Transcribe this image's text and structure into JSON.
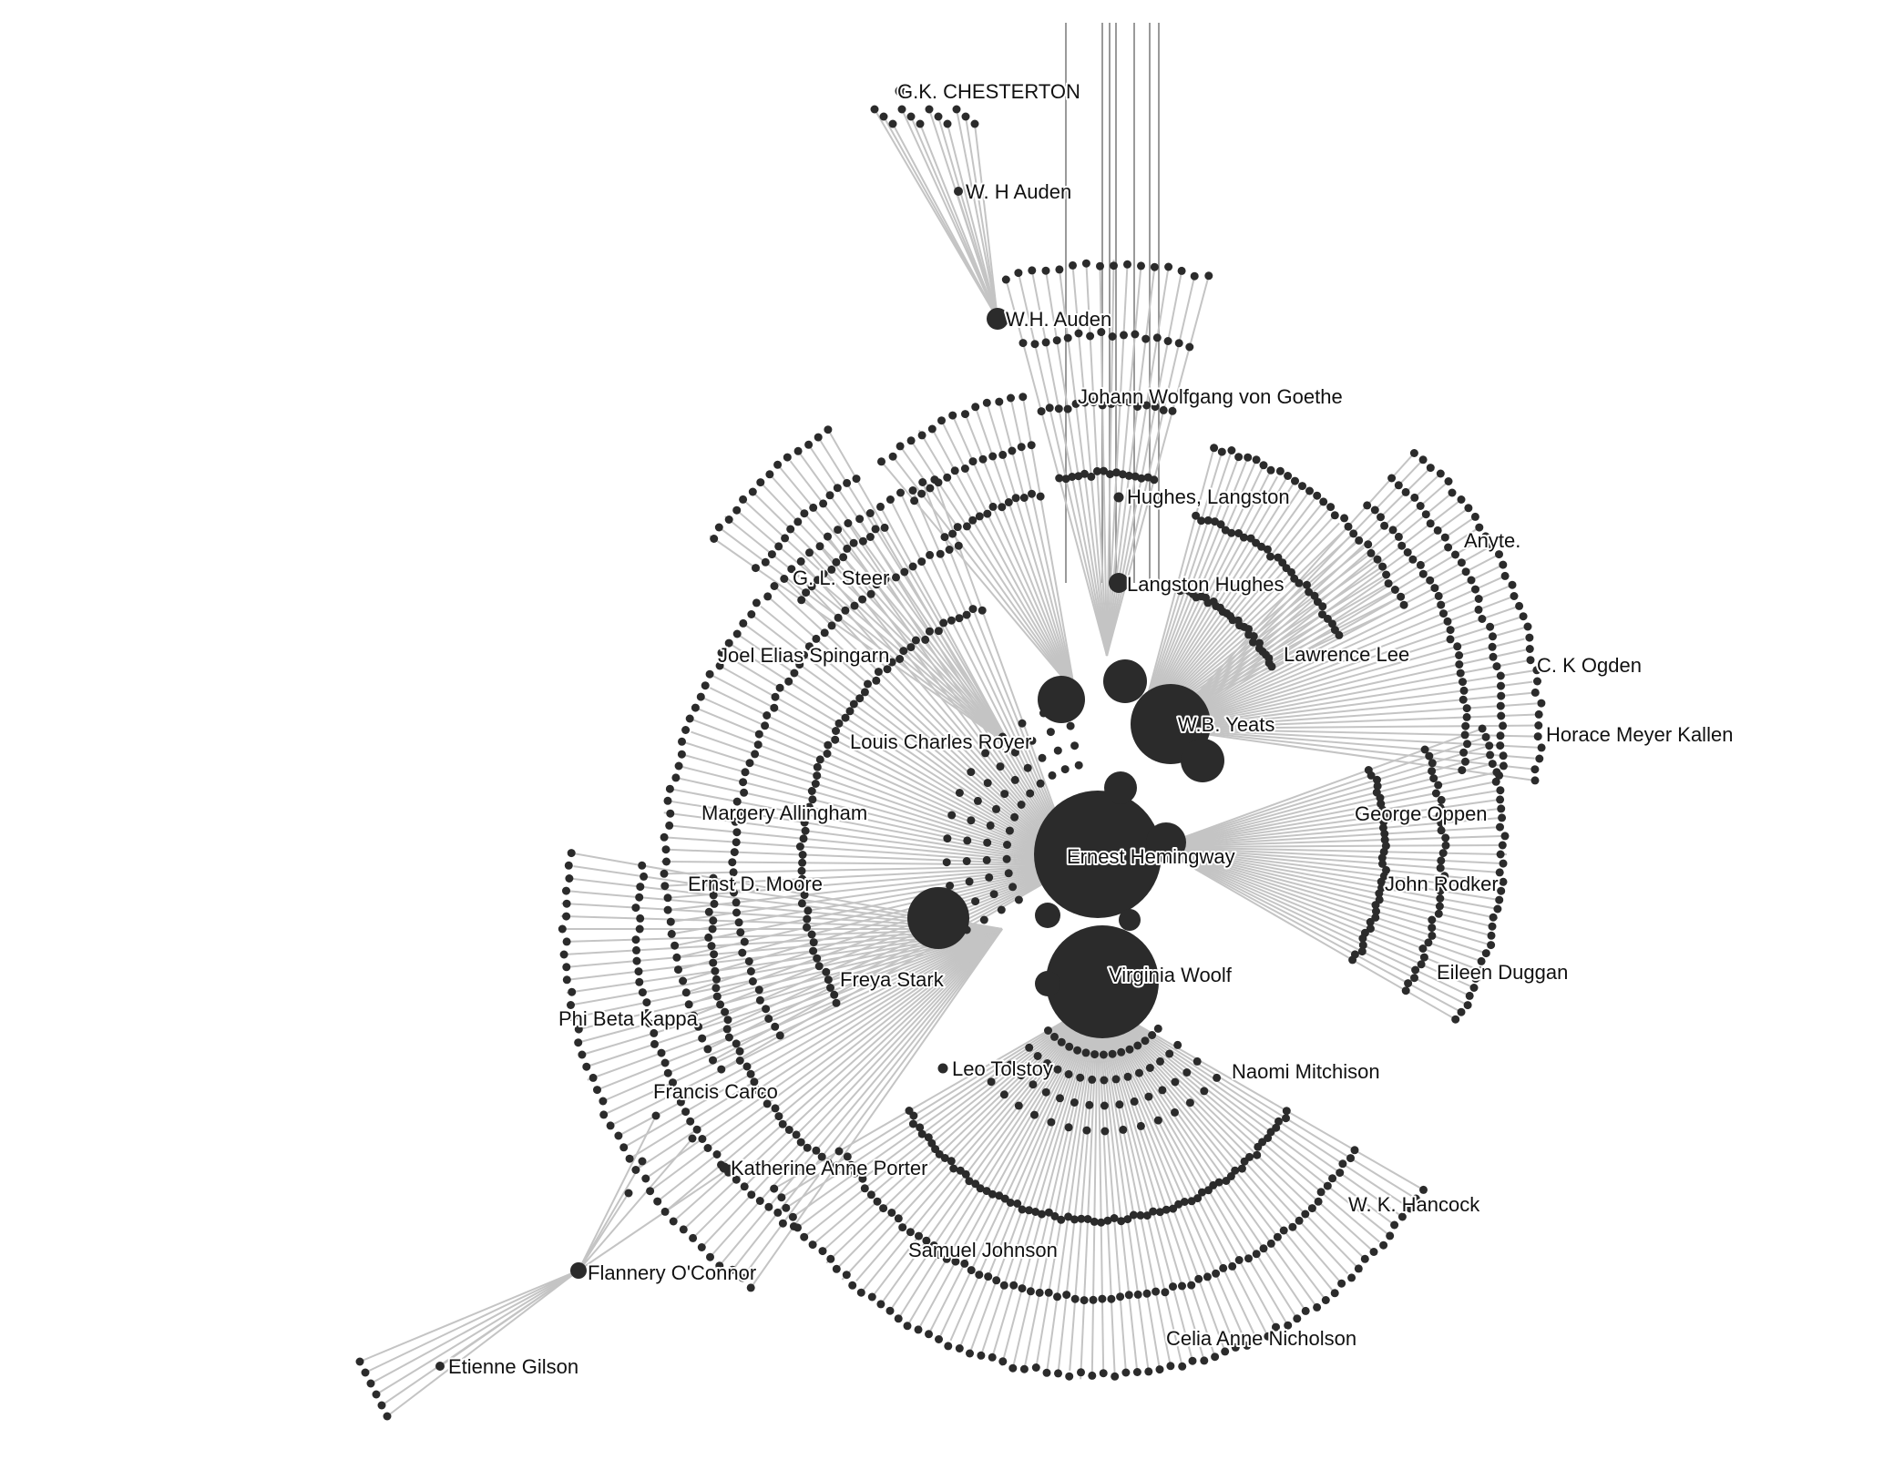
{
  "colors": {
    "node": "#2b2b2b",
    "edge": "#c4c4c4",
    "label": "#111111",
    "background": "#ffffff"
  },
  "nodes": [
    {
      "id": "gk-chesterton",
      "label": "G.K. CHESTERTON"
    },
    {
      "id": "w-h-auden-2",
      "label": "W. H Auden"
    },
    {
      "id": "wh-auden",
      "label": "W.H. Auden"
    },
    {
      "id": "goethe",
      "label": "Johann Wolfgang von Goethe"
    },
    {
      "id": "hughes-langston",
      "label": "Hughes, Langston"
    },
    {
      "id": "anyte",
      "label": "Anyte."
    },
    {
      "id": "gl-steer",
      "label": "G. L. Steer"
    },
    {
      "id": "langston-hughes",
      "label": "Langston Hughes"
    },
    {
      "id": "joel-spingarn",
      "label": "Joel Elias Spingarn"
    },
    {
      "id": "lawrence-lee",
      "label": "Lawrence Lee"
    },
    {
      "id": "ck-ogden",
      "label": "C. K Ogden"
    },
    {
      "id": "wb-yeats",
      "label": "W.B. Yeats"
    },
    {
      "id": "horace-kallen",
      "label": "Horace Meyer Kallen"
    },
    {
      "id": "louis-royer",
      "label": "Louis Charles Royer"
    },
    {
      "id": "margery-allingham",
      "label": "Margery Allingham"
    },
    {
      "id": "george-oppen",
      "label": "George Oppen"
    },
    {
      "id": "ernest-hemingway",
      "label": "Ernest Hemingway"
    },
    {
      "id": "ernst-moore",
      "label": "Ernst D. Moore"
    },
    {
      "id": "john-rodker",
      "label": "John Rodker"
    },
    {
      "id": "eileen-duggan",
      "label": "Eileen Duggan"
    },
    {
      "id": "virginia-woolf",
      "label": "Virginia Woolf"
    },
    {
      "id": "freya-stark",
      "label": "Freya Stark"
    },
    {
      "id": "phi-beta-kappa",
      "label": "Phi Beta Kappa"
    },
    {
      "id": "leo-tolstoy",
      "label": "Leo Tolstoy"
    },
    {
      "id": "naomi-mitchison",
      "label": "Naomi Mitchison"
    },
    {
      "id": "francis-carco",
      "label": "Francis Carco"
    },
    {
      "id": "katherine-porter",
      "label": "Katherine Anne Porter"
    },
    {
      "id": "wk-hancock",
      "label": "W. K. Hancock"
    },
    {
      "id": "samuel-johnson",
      "label": "Samuel Johnson"
    },
    {
      "id": "flannery-oconnor",
      "label": "Flannery O'Connor"
    },
    {
      "id": "celia-nicholson",
      "label": "Celia Anne Nicholson"
    },
    {
      "id": "etienne-gilson",
      "label": "Etienne Gilson"
    }
  ]
}
